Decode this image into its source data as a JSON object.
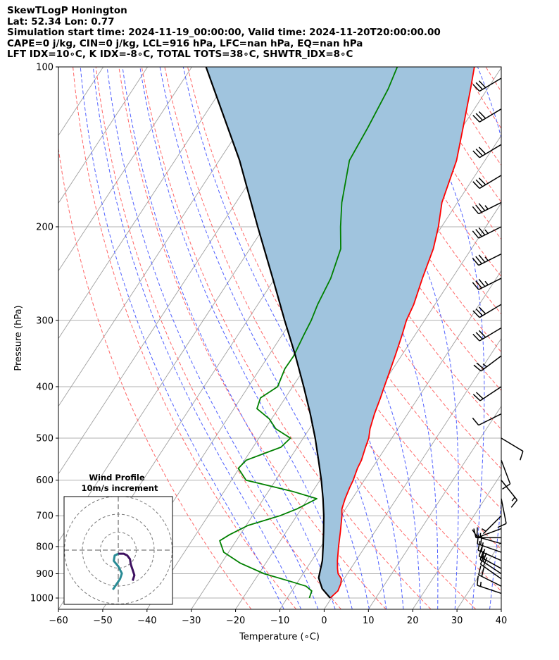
{
  "header": {
    "line1": "SkewTLogP Honington",
    "line2": "Lat: 52.34   Lon: 0.77",
    "line3": "Simulation start time: 2024-11-19_00:00:00, Valid time: 2024-11-20T20:00:00.00",
    "line4": "CAPE=0 j/kg, CIN=0 j/kg, LCL=916 hPa, LFC=nan hPa, EQ=nan hPa",
    "line5": "LFT IDX=10∘C, K IDX=-8∘C, TOTAL TOTS=38∘C, SHWTR_IDX=8∘C"
  },
  "chart_data": {
    "type": "line",
    "xlabel": "Temperature (∘C)",
    "ylabel": "Pressure (hPa)",
    "xlim": [
      -60,
      40
    ],
    "ylim": [
      1050,
      100
    ],
    "yscale": "log",
    "xticks": [
      "−60",
      "−50",
      "−40",
      "−30",
      "−20",
      "−10",
      "0",
      "10",
      "20",
      "30",
      "40"
    ],
    "yticks": [
      "1000",
      "900",
      "800",
      "700",
      "600",
      "500",
      "400",
      "300",
      "200",
      "100"
    ],
    "ytick_values": [
      1000,
      900,
      800,
      700,
      600,
      500,
      400,
      300,
      200,
      100
    ],
    "series": [
      {
        "color": "#ff0000",
        "pressure": [
          1000,
          970,
          940,
          920,
          900,
          880,
          850,
          800,
          750,
          700,
          680,
          650,
          620,
          600,
          570,
          550,
          520,
          500,
          480,
          450,
          420,
          400,
          380,
          350,
          320,
          300,
          280,
          250,
          220,
          200,
          180,
          150,
          130,
          110,
          100
        ],
        "temp": [
          -0.3,
          0.4,
          0.0,
          -0.6,
          -2.1,
          -3.0,
          -4.2,
          -6.0,
          -7.8,
          -9.8,
          -10.8,
          -11.6,
          -12.2,
          -12.5,
          -13.3,
          -13.6,
          -14.6,
          -15.2,
          -16.3,
          -17.5,
          -18.5,
          -19.3,
          -20.1,
          -21.4,
          -22.9,
          -24.1,
          -24.8,
          -26.7,
          -28.6,
          -30.7,
          -33.5,
          -36.4,
          -39.8,
          -43.8,
          -46.2
        ]
      },
      {
        "color": "#008000",
        "pressure": [
          1000,
          970,
          950,
          930,
          900,
          860,
          820,
          780,
          760,
          730,
          700,
          680,
          650,
          630,
          600,
          570,
          550,
          520,
          500,
          480,
          460,
          440,
          420,
          400,
          370,
          350,
          320,
          300,
          280,
          250,
          220,
          200,
          180,
          150,
          130,
          110,
          100
        ],
        "temp": [
          -5.0,
          -5.5,
          -7.5,
          -11.8,
          -18.8,
          -25.7,
          -31.1,
          -33.7,
          -32.4,
          -29.6,
          -23.8,
          -21.0,
          -18.0,
          -24.5,
          -36.7,
          -40.2,
          -39.6,
          -33.7,
          -32.9,
          -37.6,
          -40.5,
          -44.8,
          -45.6,
          -43.4,
          -44.4,
          -44.3,
          -45.1,
          -45.6,
          -46.5,
          -47.4,
          -49.5,
          -52.8,
          -56.1,
          -60.6,
          -61.3,
          -62.4,
          -63.6
        ]
      },
      {
        "color": "#000000",
        "pressure": [
          1000,
          960,
          916,
          850,
          800,
          750,
          700,
          650,
          600,
          550,
          500,
          450,
          400,
          350,
          300,
          250,
          200,
          150,
          100
        ],
        "temp": [
          -0.3,
          -3.5,
          -5.9,
          -7.6,
          -9.5,
          -11.6,
          -13.9,
          -16.6,
          -19.7,
          -23.3,
          -27.3,
          -32.0,
          -37.5,
          -43.9,
          -51.6,
          -60.5,
          -71.5,
          -85.4,
          -106.8
        ]
      }
    ]
  },
  "wind_barbs": {
    "pressure": [
      980,
      950,
      920,
      900,
      880,
      850,
      820,
      790,
      770,
      740,
      700,
      650,
      600,
      550,
      500,
      450,
      400,
      350,
      310,
      280,
      250,
      225,
      200,
      180,
      160,
      140,
      120,
      105
    ],
    "u": [
      15,
      16,
      17,
      18,
      18,
      18,
      17,
      14,
      11,
      8,
      5,
      -2,
      -8,
      -3,
      -10,
      10,
      15,
      20,
      25,
      25,
      30,
      30,
      30,
      30,
      25,
      25,
      25,
      25
    ],
    "v": [
      -5,
      -8,
      -12,
      -12,
      -10,
      -8,
      -6,
      -4,
      0,
      3,
      5,
      10,
      10,
      8,
      6,
      5,
      10,
      15,
      15,
      15,
      15,
      15,
      15,
      15,
      15,
      15,
      15,
      15
    ]
  },
  "wind_profile": {
    "title_line1": "Wind Profile",
    "title_line2": "10m/s increment",
    "u": [
      8,
      9,
      8,
      7,
      6.5,
      5,
      3,
      0,
      -2,
      -2.5,
      0,
      2,
      1,
      -1,
      -3
    ],
    "v": [
      -17,
      -14,
      -11,
      -8,
      -5,
      -3,
      -2,
      -2,
      -3,
      -6,
      -9,
      -13,
      -16,
      -19,
      -22
    ]
  },
  "colors": {
    "temp": "#ff0000",
    "dewpoint": "#008000",
    "parcel": "#000000",
    "cape_fill": "#a0c4de",
    "dry_adiabat": "#ff6666",
    "moist_adiabat": "#5060ff",
    "mixing_ratio": "#a0a0a0",
    "wind_teal": "#2a8c96",
    "wind_purple": "#3d1060"
  }
}
